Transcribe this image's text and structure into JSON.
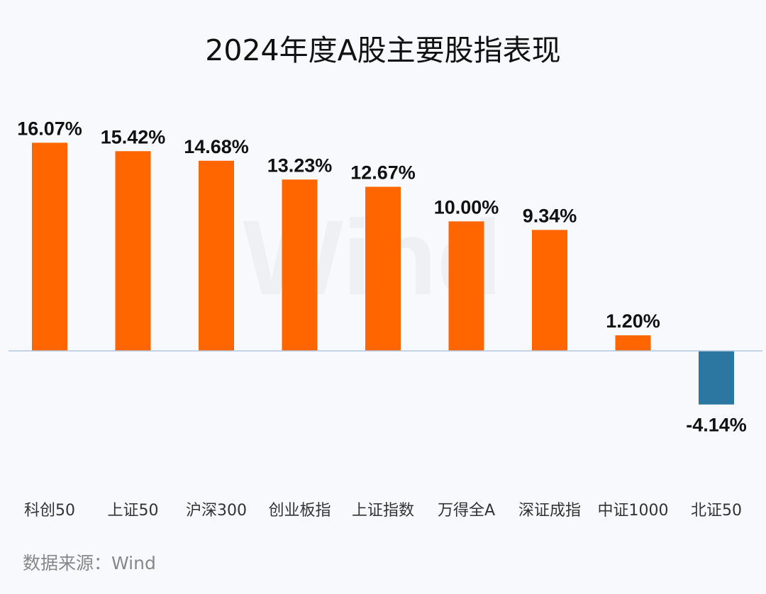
{
  "chart_data": {
    "type": "bar",
    "title": "2024年度A股主要股指表现",
    "categories": [
      "科创50",
      "上证50",
      "沪深300",
      "创业板指",
      "上证指数",
      "万得全A",
      "深证成指",
      "中证1000",
      "北证50"
    ],
    "values": [
      16.07,
      15.42,
      14.68,
      13.23,
      12.67,
      10.0,
      9.34,
      1.2,
      -4.14
    ],
    "value_labels": [
      "16.07%",
      "15.42%",
      "14.68%",
      "13.23%",
      "12.67%",
      "10.00%",
      "9.34%",
      "1.20%",
      "-4.14%"
    ],
    "unit": "%",
    "ylim": [
      -6,
      18
    ],
    "grid": false,
    "legend": "none",
    "colors": {
      "positive": "#ff6600",
      "negative": "#2b77a1",
      "baseline": "#b4c8de"
    }
  },
  "source": "数据来源：Wind",
  "watermark": "Wind"
}
